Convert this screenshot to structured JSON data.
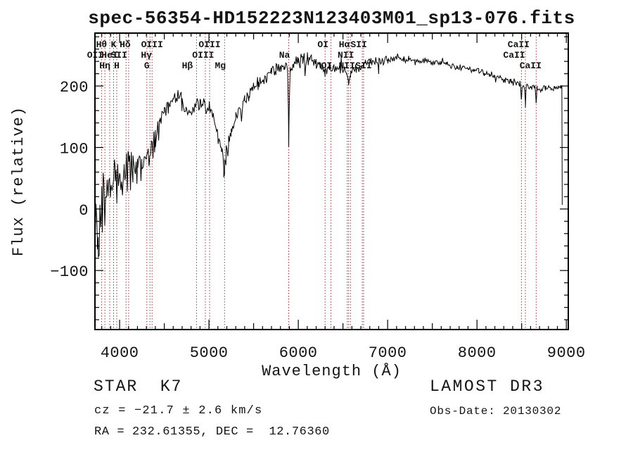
{
  "title": "spec-56354-HD152223N123403M01_sp13-076.fits",
  "annotations": {
    "star_class": "STAR  K7",
    "cz": "cz = −21.7 ± 2.6 km/s",
    "ra_dec": "RA = 232.61355, DEC =  12.76360",
    "survey": "LAMOST DR3",
    "obs_date": "Obs-Date: 20130302"
  },
  "chart_data": {
    "type": "line",
    "title": "spec-56354-HD152223N123403M01_sp13-076.fits",
    "xlabel": "Wavelength (Å)",
    "ylabel": "Flux (relative)",
    "xlim": [
      3724,
      9022
    ],
    "ylim": [
      -196,
      286
    ],
    "xticks_major": [
      4000,
      5000,
      6000,
      7000,
      8000,
      9000
    ],
    "xtick_minor_step": 100,
    "xtick_medium_step": 500,
    "yticks_major": [
      -100,
      0,
      100,
      200
    ],
    "ytick_minor_step": 20,
    "grid": false,
    "legend": null,
    "line_color": "#000000",
    "spectral_line_color": "#a33434",
    "spectral_lines": [
      {
        "wavelength": 3727,
        "label": "OII",
        "row": 2,
        "dx": 0
      },
      {
        "wavelength": 3798,
        "label": "Hθ",
        "row": 1,
        "dx": 0
      },
      {
        "wavelength": 3835,
        "label": "Hη",
        "row": 3,
        "dx": 0
      },
      {
        "wavelength": 3889,
        "label": "HeI",
        "row": 2,
        "dx": 0
      },
      {
        "wavelength": 3933,
        "label": "K",
        "row": 1,
        "dx": 0
      },
      {
        "wavelength": 3968,
        "label": "H",
        "row": 3,
        "dx": 0
      },
      {
        "wavelength": 4072,
        "label": "SII",
        "row": 2,
        "dx": -10
      },
      {
        "wavelength": 4101,
        "label": "Hδ",
        "row": 1,
        "dx": -5
      },
      {
        "wavelength": 4305,
        "label": "G",
        "row": 3,
        "dx": 0
      },
      {
        "wavelength": 4340,
        "label": "Hγ",
        "row": 2,
        "dx": -5
      },
      {
        "wavelength": 4363,
        "label": "OIII",
        "row": 1,
        "dx": 0
      },
      {
        "wavelength": 4861,
        "label": "Hβ",
        "row": 3,
        "dx": -13
      },
      {
        "wavelength": 4959,
        "label": "OIII",
        "row": 2,
        "dx": -3
      },
      {
        "wavelength": 5007,
        "label": "OIII",
        "row": 1,
        "dx": 0
      },
      {
        "wavelength": 5175,
        "label": "Mg",
        "row": 3,
        "dx": -6
      },
      {
        "wavelength": 5893,
        "label": "Na",
        "row": 2,
        "dx": -6
      },
      {
        "wavelength": 6300,
        "label": "OI",
        "row": 1,
        "dx": -3
      },
      {
        "wavelength": 6364,
        "label": "OI",
        "row": 3,
        "dx": -6
      },
      {
        "wavelength": 6548,
        "label": "NII",
        "row": 2,
        "dx": -2
      },
      {
        "wavelength": 6563,
        "label": "Hα",
        "row": 1,
        "dx": -6
      },
      {
        "wavelength": 6583,
        "label": "NII",
        "row": 3,
        "dx": -5
      },
      {
        "wavelength": 6716,
        "label": "SII",
        "row": 1,
        "dx": -5
      },
      {
        "wavelength": 6731,
        "label": "SII",
        "row": 3,
        "dx": 0
      },
      {
        "wavelength": 8498,
        "label": "CaII",
        "row": 1,
        "dx": -4
      },
      {
        "wavelength": 8542,
        "label": "CaII",
        "row": 2,
        "dx": -16
      },
      {
        "wavelength": 8662,
        "label": "CaII",
        "row": 3,
        "dx": -8
      }
    ],
    "envelope": [
      [
        3726,
        -25
      ],
      [
        3760,
        -15
      ],
      [
        3800,
        8
      ],
      [
        3850,
        22
      ],
      [
        3900,
        32
      ],
      [
        3950,
        40
      ],
      [
        4000,
        47
      ],
      [
        4050,
        56
      ],
      [
        4100,
        63
      ],
      [
        4150,
        68
      ],
      [
        4200,
        71
      ],
      [
        4250,
        74
      ],
      [
        4300,
        79
      ],
      [
        4350,
        92
      ],
      [
        4400,
        115
      ],
      [
        4450,
        142
      ],
      [
        4500,
        162
      ],
      [
        4550,
        174
      ],
      [
        4600,
        181
      ],
      [
        4650,
        183
      ],
      [
        4700,
        173
      ],
      [
        4740,
        156
      ],
      [
        4780,
        153
      ],
      [
        4820,
        160
      ],
      [
        4860,
        167
      ],
      [
        4900,
        174
      ],
      [
        4950,
        172
      ],
      [
        5000,
        164
      ],
      [
        5050,
        146
      ],
      [
        5100,
        122
      ],
      [
        5140,
        96
      ],
      [
        5165,
        78
      ],
      [
        5175,
        68
      ],
      [
        5190,
        84
      ],
      [
        5220,
        105
      ],
      [
        5250,
        128
      ],
      [
        5300,
        149
      ],
      [
        5350,
        163
      ],
      [
        5400,
        176
      ],
      [
        5450,
        186
      ],
      [
        5500,
        196
      ],
      [
        5550,
        203
      ],
      [
        5600,
        210
      ],
      [
        5650,
        216
      ],
      [
        5700,
        221
      ],
      [
        5750,
        226
      ],
      [
        5800,
        230
      ],
      [
        5850,
        233
      ],
      [
        5880,
        231
      ],
      [
        5889,
        160
      ],
      [
        5893,
        107
      ],
      [
        5898,
        160
      ],
      [
        5910,
        228
      ],
      [
        5950,
        234
      ],
      [
        6000,
        239
      ],
      [
        6050,
        244
      ],
      [
        6100,
        247
      ],
      [
        6150,
        243
      ],
      [
        6200,
        238
      ],
      [
        6250,
        232
      ],
      [
        6300,
        224
      ],
      [
        6350,
        229
      ],
      [
        6400,
        232
      ],
      [
        6450,
        230
      ],
      [
        6500,
        227
      ],
      [
        6540,
        221
      ],
      [
        6563,
        206
      ],
      [
        6585,
        219
      ],
      [
        6650,
        227
      ],
      [
        6700,
        233
      ],
      [
        6750,
        239
      ],
      [
        6800,
        241
      ],
      [
        6850,
        239
      ],
      [
        6900,
        238
      ],
      [
        6950,
        240
      ],
      [
        7000,
        243
      ],
      [
        7060,
        245
      ],
      [
        7120,
        246
      ],
      [
        7180,
        244
      ],
      [
        7240,
        242
      ],
      [
        7300,
        241
      ],
      [
        7360,
        240
      ],
      [
        7420,
        241
      ],
      [
        7480,
        241
      ],
      [
        7540,
        239
      ],
      [
        7600,
        237
      ],
      [
        7660,
        235
      ],
      [
        7720,
        233
      ],
      [
        7780,
        231
      ],
      [
        7840,
        229
      ],
      [
        7900,
        228
      ],
      [
        7960,
        227
      ],
      [
        8020,
        225
      ],
      [
        8080,
        222
      ],
      [
        8140,
        219
      ],
      [
        8200,
        216
      ],
      [
        8260,
        213
      ],
      [
        8320,
        210
      ],
      [
        8380,
        207
      ],
      [
        8440,
        204
      ],
      [
        8480,
        202
      ],
      [
        8490,
        200
      ],
      [
        8498,
        176
      ],
      [
        8508,
        200
      ],
      [
        8534,
        199
      ],
      [
        8542,
        170
      ],
      [
        8552,
        198
      ],
      [
        8600,
        197
      ],
      [
        8640,
        196
      ],
      [
        8654,
        195
      ],
      [
        8662,
        167
      ],
      [
        8672,
        194
      ],
      [
        8720,
        196
      ],
      [
        8770,
        198
      ],
      [
        8820,
        196
      ],
      [
        8870,
        195
      ],
      [
        8910,
        198
      ],
      [
        8940,
        200
      ],
      [
        8950,
        198
      ],
      [
        8953,
        60
      ],
      [
        8954,
        2
      ]
    ],
    "noise_sigma": [
      [
        3726,
        55
      ],
      [
        3780,
        48
      ],
      [
        3850,
        40
      ],
      [
        3950,
        32
      ],
      [
        4050,
        27
      ],
      [
        4150,
        22
      ],
      [
        4250,
        19
      ],
      [
        4350,
        17
      ],
      [
        4500,
        14
      ],
      [
        4700,
        11
      ],
      [
        4900,
        10
      ],
      [
        5100,
        10
      ],
      [
        5300,
        9
      ],
      [
        5500,
        8
      ],
      [
        5700,
        7
      ],
      [
        5900,
        6.5
      ],
      [
        6050,
        9
      ],
      [
        6200,
        7
      ],
      [
        6350,
        6.5
      ],
      [
        6500,
        6
      ],
      [
        6700,
        5.5
      ],
      [
        6900,
        5
      ],
      [
        7100,
        4.5
      ],
      [
        7400,
        4
      ],
      [
        7700,
        3.5
      ],
      [
        8000,
        3.5
      ],
      [
        8300,
        4
      ],
      [
        8600,
        4
      ],
      [
        8954,
        3.5
      ]
    ],
    "noise_seed": 42,
    "sample_step_angstrom": 9
  }
}
